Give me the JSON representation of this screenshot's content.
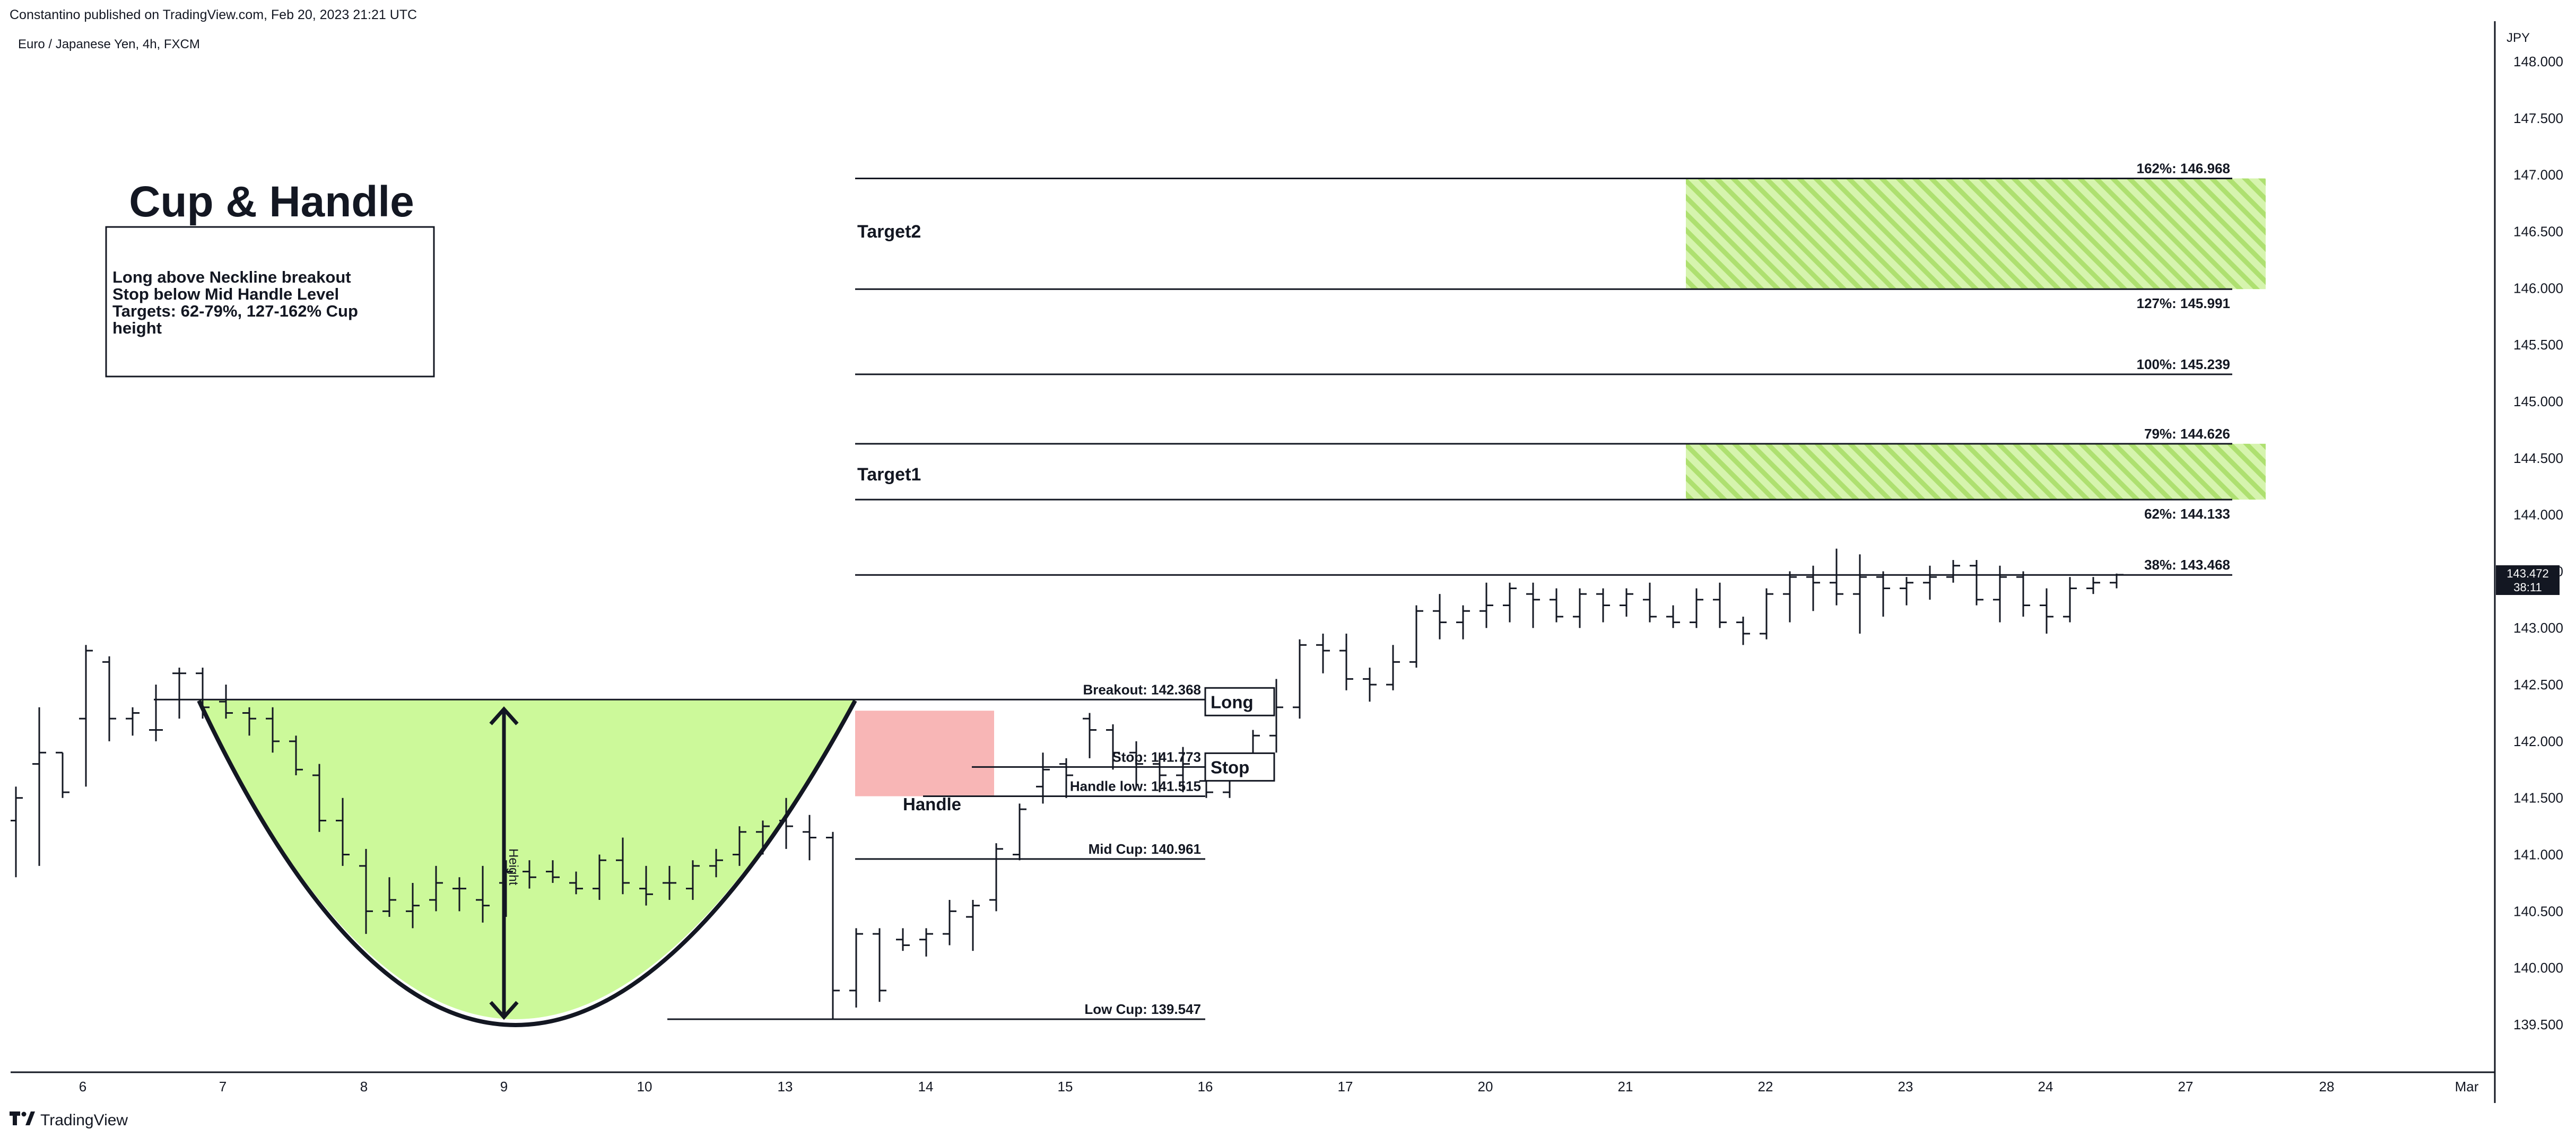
{
  "header": {
    "published": "Constantino published on TradingView.com, Feb 20, 2023 21:21 UTC",
    "symbol": "Euro / Japanese Yen, 4h, FXCM",
    "currency": "JPY"
  },
  "price_badge": {
    "price": "143.472",
    "countdown": "38:11"
  },
  "footer": {
    "logo_icon": "tradingview-logo-icon",
    "brand": "TradingView"
  },
  "annotations": {
    "title": "Cup & Handle",
    "note_lines": [
      "Long above Neckline breakout",
      "Stop below Mid Handle Level",
      "Targets: 62-79%, 127-162% Cup",
      "height"
    ],
    "height_label": "Height",
    "handle_label": "Handle",
    "long_label": "Long",
    "stop_label": "Stop",
    "target1_label": "Target1",
    "target2_label": "Target2"
  },
  "chart_data": {
    "type": "ohlc",
    "instrument": "Euro / Japanese Yen, 4h, FXCM",
    "ylim": [
      139.05,
      148.25
    ],
    "y_ticks": [
      "148.000",
      "147.500",
      "147.000",
      "146.500",
      "146.000",
      "145.500",
      "145.000",
      "144.500",
      "144.000",
      "143.500",
      "143.000",
      "142.500",
      "142.000",
      "141.500",
      "141.000",
      "140.500",
      "140.000",
      "139.500"
    ],
    "x_ticks": [
      "6",
      "7",
      "8",
      "9",
      "10",
      "13",
      "14",
      "15",
      "16",
      "17",
      "20",
      "21",
      "22",
      "23",
      "24",
      "27",
      "28",
      "Mar"
    ],
    "levels": [
      {
        "label": "Breakout: 142.368",
        "value": 142.368
      },
      {
        "label": "Stop: 141.773",
        "value": 141.773
      },
      {
        "label": "Handle low: 141.515",
        "value": 141.515
      },
      {
        "label": "Mid Cup: 140.961",
        "value": 140.961
      },
      {
        "label": "Low Cup: 139.547",
        "value": 139.547
      }
    ],
    "fib_levels": [
      {
        "label": "162%: 146.968",
        "value": 146.968
      },
      {
        "label": "127%: 145.991",
        "value": 145.991
      },
      {
        "label": "100%: 145.239",
        "value": 145.239
      },
      {
        "label": "79%: 144.626",
        "value": 144.626
      },
      {
        "label": "62%: 144.133",
        "value": 144.133
      },
      {
        "label": "38%: 143.468",
        "value": 143.468
      }
    ],
    "target_zones": [
      {
        "name": "Target1",
        "from": 144.133,
        "to": 144.626
      },
      {
        "name": "Target2",
        "from": 145.991,
        "to": 146.968
      }
    ],
    "cup_low": 139.547,
    "neckline": 142.368,
    "bars": [
      {
        "o": 141.3,
        "h": 141.6,
        "l": 140.8,
        "c": 141.5
      },
      {
        "o": 141.8,
        "h": 142.3,
        "l": 140.9,
        "c": 141.9
      },
      {
        "o": 141.9,
        "h": 141.9,
        "l": 141.5,
        "c": 141.55
      },
      {
        "o": 142.2,
        "h": 142.85,
        "l": 141.6,
        "c": 142.8
      },
      {
        "o": 142.7,
        "h": 142.75,
        "l": 142.0,
        "c": 142.2
      },
      {
        "o": 142.2,
        "h": 142.3,
        "l": 142.05,
        "c": 142.25
      },
      {
        "o": 142.1,
        "h": 142.5,
        "l": 142.0,
        "c": 142.1
      },
      {
        "o": 142.6,
        "h": 142.65,
        "l": 142.2,
        "c": 142.6
      },
      {
        "o": 142.6,
        "h": 142.65,
        "l": 142.2,
        "c": 142.3
      },
      {
        "o": 142.35,
        "h": 142.5,
        "l": 142.2,
        "c": 142.25
      },
      {
        "o": 142.25,
        "h": 142.3,
        "l": 142.05,
        "c": 142.2
      },
      {
        "o": 142.2,
        "h": 142.3,
        "l": 141.9,
        "c": 142.0
      },
      {
        "o": 142.0,
        "h": 142.05,
        "l": 141.7,
        "c": 141.75
      },
      {
        "o": 141.7,
        "h": 141.8,
        "l": 141.2,
        "c": 141.3
      },
      {
        "o": 141.3,
        "h": 141.5,
        "l": 140.9,
        "c": 141.0
      },
      {
        "o": 140.9,
        "h": 141.05,
        "l": 140.3,
        "c": 140.5
      },
      {
        "o": 140.5,
        "h": 140.8,
        "l": 140.45,
        "c": 140.6
      },
      {
        "o": 140.5,
        "h": 140.75,
        "l": 140.35,
        "c": 140.55
      },
      {
        "o": 140.6,
        "h": 140.9,
        "l": 140.5,
        "c": 140.75
      },
      {
        "o": 140.7,
        "h": 140.8,
        "l": 140.5,
        "c": 140.7
      },
      {
        "o": 140.6,
        "h": 140.9,
        "l": 140.4,
        "c": 140.55
      },
      {
        "o": 140.75,
        "h": 140.95,
        "l": 140.45,
        "c": 140.85
      },
      {
        "o": 140.85,
        "h": 140.95,
        "l": 140.7,
        "c": 140.8
      },
      {
        "o": 140.85,
        "h": 140.95,
        "l": 140.75,
        "c": 140.8
      },
      {
        "o": 140.75,
        "h": 140.85,
        "l": 140.65,
        "c": 140.7
      },
      {
        "o": 140.7,
        "h": 141.0,
        "l": 140.6,
        "c": 140.95
      },
      {
        "o": 140.95,
        "h": 141.15,
        "l": 140.65,
        "c": 140.75
      },
      {
        "o": 140.7,
        "h": 140.9,
        "l": 140.55,
        "c": 140.65
      },
      {
        "o": 140.75,
        "h": 140.9,
        "l": 140.6,
        "c": 140.75
      },
      {
        "o": 140.7,
        "h": 140.95,
        "l": 140.6,
        "c": 140.9
      },
      {
        "o": 140.9,
        "h": 141.05,
        "l": 140.8,
        "c": 140.95
      },
      {
        "o": 141.0,
        "h": 141.25,
        "l": 140.9,
        "c": 141.2
      },
      {
        "o": 141.2,
        "h": 141.3,
        "l": 141.0,
        "c": 141.25
      },
      {
        "o": 141.3,
        "h": 141.5,
        "l": 141.05,
        "c": 141.25
      },
      {
        "o": 141.2,
        "h": 141.35,
        "l": 140.95,
        "c": 141.15
      },
      {
        "o": 141.15,
        "h": 141.2,
        "l": 139.55,
        "c": 139.8
      },
      {
        "o": 139.8,
        "h": 140.35,
        "l": 139.65,
        "c": 140.3
      },
      {
        "o": 140.3,
        "h": 140.35,
        "l": 139.7,
        "c": 139.8
      },
      {
        "o": 140.25,
        "h": 140.35,
        "l": 140.15,
        "c": 140.2
      },
      {
        "o": 140.25,
        "h": 140.35,
        "l": 140.1,
        "c": 140.3
      },
      {
        "o": 140.3,
        "h": 140.6,
        "l": 140.2,
        "c": 140.5
      },
      {
        "o": 140.45,
        "h": 140.6,
        "l": 140.15,
        "c": 140.55
      },
      {
        "o": 140.6,
        "h": 141.1,
        "l": 140.5,
        "c": 141.05
      },
      {
        "o": 141.0,
        "h": 141.45,
        "l": 140.95,
        "c": 141.4
      },
      {
        "o": 141.6,
        "h": 141.9,
        "l": 141.45,
        "c": 141.75
      },
      {
        "o": 141.8,
        "h": 141.85,
        "l": 141.5,
        "c": 141.7
      },
      {
        "o": 142.2,
        "h": 142.25,
        "l": 141.85,
        "c": 142.1
      },
      {
        "o": 142.1,
        "h": 142.15,
        "l": 141.75,
        "c": 141.9
      },
      {
        "o": 141.9,
        "h": 142.0,
        "l": 141.6,
        "c": 141.8
      },
      {
        "o": 141.8,
        "h": 141.9,
        "l": 141.55,
        "c": 141.7
      },
      {
        "o": 141.7,
        "h": 141.95,
        "l": 141.55,
        "c": 141.8
      },
      {
        "o": 141.65,
        "h": 141.8,
        "l": 141.5,
        "c": 141.55
      },
      {
        "o": 141.55,
        "h": 141.9,
        "l": 141.5,
        "c": 141.85
      },
      {
        "o": 141.85,
        "h": 142.1,
        "l": 141.75,
        "c": 142.05
      },
      {
        "o": 142.05,
        "h": 142.55,
        "l": 141.9,
        "c": 142.3
      },
      {
        "o": 142.3,
        "h": 142.9,
        "l": 142.2,
        "c": 142.85
      },
      {
        "o": 142.85,
        "h": 142.95,
        "l": 142.6,
        "c": 142.8
      },
      {
        "o": 142.8,
        "h": 142.95,
        "l": 142.45,
        "c": 142.55
      },
      {
        "o": 142.55,
        "h": 142.65,
        "l": 142.35,
        "c": 142.5
      },
      {
        "o": 142.5,
        "h": 142.85,
        "l": 142.45,
        "c": 142.7
      },
      {
        "o": 142.7,
        "h": 143.2,
        "l": 142.65,
        "c": 143.15
      },
      {
        "o": 143.15,
        "h": 143.3,
        "l": 142.9,
        "c": 143.05
      },
      {
        "o": 143.05,
        "h": 143.2,
        "l": 142.9,
        "c": 143.15
      },
      {
        "o": 143.15,
        "h": 143.4,
        "l": 143.0,
        "c": 143.2
      },
      {
        "o": 143.2,
        "h": 143.4,
        "l": 143.05,
        "c": 143.35
      },
      {
        "o": 143.3,
        "h": 143.4,
        "l": 143.0,
        "c": 143.25
      },
      {
        "o": 143.25,
        "h": 143.35,
        "l": 143.05,
        "c": 143.1
      },
      {
        "o": 143.1,
        "h": 143.35,
        "l": 143.0,
        "c": 143.3
      },
      {
        "o": 143.3,
        "h": 143.35,
        "l": 143.05,
        "c": 143.2
      },
      {
        "o": 143.2,
        "h": 143.35,
        "l": 143.1,
        "c": 143.3
      },
      {
        "o": 143.25,
        "h": 143.4,
        "l": 143.05,
        "c": 143.1
      },
      {
        "o": 143.1,
        "h": 143.2,
        "l": 143.0,
        "c": 143.05
      },
      {
        "o": 143.05,
        "h": 143.35,
        "l": 143.0,
        "c": 143.25
      },
      {
        "o": 143.25,
        "h": 143.4,
        "l": 143.0,
        "c": 143.05
      },
      {
        "o": 143.05,
        "h": 143.1,
        "l": 142.85,
        "c": 142.95
      },
      {
        "o": 142.95,
        "h": 143.35,
        "l": 142.9,
        "c": 143.3
      },
      {
        "o": 143.3,
        "h": 143.5,
        "l": 143.05,
        "c": 143.45
      },
      {
        "o": 143.45,
        "h": 143.55,
        "l": 143.15,
        "c": 143.4
      },
      {
        "o": 143.4,
        "h": 143.7,
        "l": 143.2,
        "c": 143.3
      },
      {
        "o": 143.3,
        "h": 143.65,
        "l": 142.95,
        "c": 143.45
      },
      {
        "o": 143.45,
        "h": 143.5,
        "l": 143.1,
        "c": 143.35
      },
      {
        "o": 143.35,
        "h": 143.45,
        "l": 143.2,
        "c": 143.4
      },
      {
        "o": 143.4,
        "h": 143.55,
        "l": 143.25,
        "c": 143.45
      },
      {
        "o": 143.45,
        "h": 143.6,
        "l": 143.4,
        "c": 143.55
      },
      {
        "o": 143.55,
        "h": 143.6,
        "l": 143.2,
        "c": 143.25
      },
      {
        "o": 143.25,
        "h": 143.55,
        "l": 143.05,
        "c": 143.45
      },
      {
        "o": 143.45,
        "h": 143.5,
        "l": 143.1,
        "c": 143.2
      },
      {
        "o": 143.2,
        "h": 143.35,
        "l": 142.95,
        "c": 143.1
      },
      {
        "o": 143.1,
        "h": 143.45,
        "l": 143.05,
        "c": 143.35
      },
      {
        "o": 143.35,
        "h": 143.45,
        "l": 143.3,
        "c": 143.4
      },
      {
        "o": 143.4,
        "h": 143.48,
        "l": 143.35,
        "c": 143.47
      }
    ]
  },
  "colors": {
    "cup_fill": "#ccf99a",
    "handle_fill": "#f8b6b6",
    "target_fill": "#c9ef9b",
    "target_stripe": "#9ed860",
    "line": "#131722",
    "axis_text": "#131722"
  }
}
